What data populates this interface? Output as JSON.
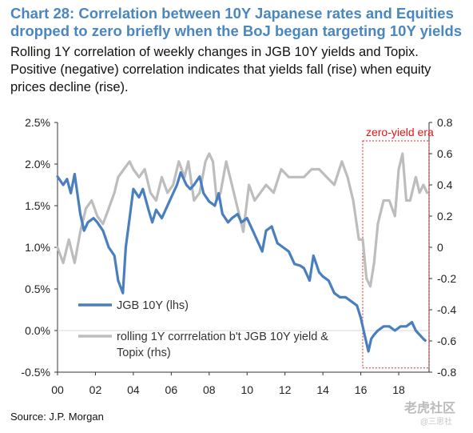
{
  "header": {
    "title_line1": "Chart 28: Correlation between 10Y Japanese rates and Equities",
    "title_line2": "dropped to zero briefly when the BoJ began targeting 10Y yields",
    "subtitle_line1": "Rolling 1Y correlation of weekly changes in JGB 10Y yields and Topix.",
    "subtitle_line2": "Positive (negative) correlation indicates that yields fall (rise) when equity",
    "subtitle_line3": "prices decline (rise)."
  },
  "footer": {
    "source": "Source: J.P. Morgan",
    "watermark": "老虎社区",
    "watermark_sub": "@三思社"
  },
  "chart_data": {
    "type": "line",
    "title": "Chart 28: Correlation between 10Y Japanese rates and Equities dropped to zero briefly when the BoJ began targeting 10Y yields",
    "x_tick_labels": [
      "00",
      "02",
      "04",
      "06",
      "08",
      "10",
      "12",
      "14",
      "16",
      "18"
    ],
    "x_ticks": [
      2000,
      2002,
      2004,
      2006,
      2008,
      2010,
      2012,
      2014,
      2016,
      2018
    ],
    "xlim": [
      2000,
      2019.6
    ],
    "y_left": {
      "ticks": [
        -0.5,
        0.0,
        0.5,
        1.0,
        1.5,
        2.0,
        2.5
      ],
      "tick_labels": [
        "-0.5%",
        "0.0%",
        "0.5%",
        "1.0%",
        "1.5%",
        "2.0%",
        "2.5%"
      ],
      "ylim": [
        -0.5,
        2.5
      ]
    },
    "y_right": {
      "ticks": [
        -0.8,
        -0.6,
        -0.4,
        -0.2,
        0,
        0.2,
        0.4,
        0.6,
        0.8
      ],
      "tick_labels": [
        "-0.8",
        "-0.6",
        "-0.4",
        "-0.2",
        "0",
        "0.2",
        "0.4",
        "0.6",
        "0.8"
      ],
      "ylim": [
        -0.8,
        0.8
      ]
    },
    "annotation": {
      "label": "zero-yield era",
      "x_range": [
        2016.1,
        2019.6
      ],
      "color": "#e02020"
    },
    "legend": {
      "placement": "bottom-left"
    },
    "series": [
      {
        "name": "JGB 10Y (lhs)",
        "axis": "left",
        "color": "#4a7fbf",
        "x": [
          2000.0,
          2000.3,
          2000.5,
          2000.7,
          2000.9,
          2001.2,
          2001.4,
          2001.6,
          2001.9,
          2002.1,
          2002.4,
          2002.7,
          2003.0,
          2003.2,
          2003.45,
          2003.6,
          2003.8,
          2004.0,
          2004.3,
          2004.5,
          2004.8,
          2005.0,
          2005.2,
          2005.5,
          2005.8,
          2006.0,
          2006.3,
          2006.5,
          2006.8,
          2007.0,
          2007.2,
          2007.5,
          2007.7,
          2008.0,
          2008.3,
          2008.5,
          2008.7,
          2009.0,
          2009.2,
          2009.5,
          2009.7,
          2010.0,
          2010.3,
          2010.6,
          2010.8,
          2011.0,
          2011.3,
          2011.6,
          2011.9,
          2012.2,
          2012.5,
          2012.8,
          2013.0,
          2013.3,
          2013.5,
          2013.8,
          2014.0,
          2014.3,
          2014.6,
          2014.9,
          2015.2,
          2015.5,
          2015.8,
          2016.0,
          2016.2,
          2016.4,
          2016.55,
          2016.7,
          2016.9,
          2017.2,
          2017.5,
          2017.8,
          2018.1,
          2018.4,
          2018.7,
          2018.9,
          2019.1,
          2019.3,
          2019.4
        ],
        "values": [
          1.85,
          1.75,
          1.82,
          1.65,
          1.88,
          1.4,
          1.2,
          1.3,
          1.35,
          1.3,
          1.2,
          1.0,
          0.9,
          0.6,
          0.45,
          1.0,
          1.35,
          1.7,
          1.6,
          1.7,
          1.45,
          1.3,
          1.45,
          1.35,
          1.5,
          1.6,
          1.75,
          1.9,
          1.75,
          1.7,
          1.75,
          1.85,
          1.65,
          1.55,
          1.5,
          1.65,
          1.4,
          1.3,
          1.35,
          1.4,
          1.3,
          1.35,
          1.2,
          1.05,
          0.95,
          1.2,
          1.25,
          1.05,
          1.0,
          0.95,
          0.8,
          0.78,
          0.75,
          0.6,
          0.9,
          0.7,
          0.65,
          0.6,
          0.45,
          0.4,
          0.4,
          0.35,
          0.3,
          0.15,
          -0.05,
          -0.25,
          -0.1,
          -0.05,
          0.0,
          0.05,
          0.05,
          0.0,
          0.05,
          0.05,
          0.1,
          0.0,
          -0.05,
          -0.1,
          -0.12
        ]
      },
      {
        "name": "rolling 1Y corrrelation b't JGB 10Y yield & Topix (rhs)",
        "axis": "right",
        "color": "#bdbdbd",
        "x": [
          2000.0,
          2000.3,
          2000.6,
          2000.9,
          2001.2,
          2001.5,
          2001.8,
          2002.1,
          2002.4,
          2002.7,
          2003.0,
          2003.2,
          2003.5,
          2003.8,
          2004.0,
          2004.3,
          2004.6,
          2004.9,
          2005.2,
          2005.5,
          2005.8,
          2006.1,
          2006.4,
          2006.7,
          2006.9,
          2007.2,
          2007.5,
          2007.8,
          2008.0,
          2008.2,
          2008.4,
          2008.6,
          2008.9,
          2009.2,
          2009.5,
          2009.8,
          2010.1,
          2010.4,
          2010.7,
          2011.0,
          2011.4,
          2011.8,
          2012.2,
          2012.6,
          2013.0,
          2013.4,
          2013.8,
          2014.2,
          2014.6,
          2015.0,
          2015.3,
          2015.6,
          2015.9,
          2016.1,
          2016.3,
          2016.5,
          2016.7,
          2016.9,
          2017.2,
          2017.5,
          2017.8,
          2018.0,
          2018.2,
          2018.4,
          2018.6,
          2018.9,
          2019.1,
          2019.3,
          2019.5
        ],
        "values": [
          0.0,
          -0.1,
          0.05,
          -0.1,
          0.1,
          0.25,
          0.3,
          0.2,
          0.15,
          0.25,
          0.35,
          0.45,
          0.5,
          0.55,
          0.5,
          0.45,
          0.5,
          0.35,
          0.3,
          0.45,
          0.35,
          0.4,
          0.55,
          0.45,
          0.55,
          0.3,
          0.35,
          0.55,
          0.6,
          0.55,
          0.3,
          0.35,
          0.55,
          0.4,
          0.25,
          0.1,
          0.4,
          0.3,
          0.35,
          0.4,
          0.35,
          0.5,
          0.45,
          0.45,
          0.45,
          0.5,
          0.5,
          0.45,
          0.4,
          0.55,
          0.45,
          0.3,
          0.05,
          0.05,
          -0.2,
          -0.25,
          -0.1,
          0.15,
          0.3,
          0.3,
          0.2,
          0.5,
          0.6,
          0.3,
          0.3,
          0.45,
          0.35,
          0.4,
          0.35
        ]
      }
    ]
  }
}
